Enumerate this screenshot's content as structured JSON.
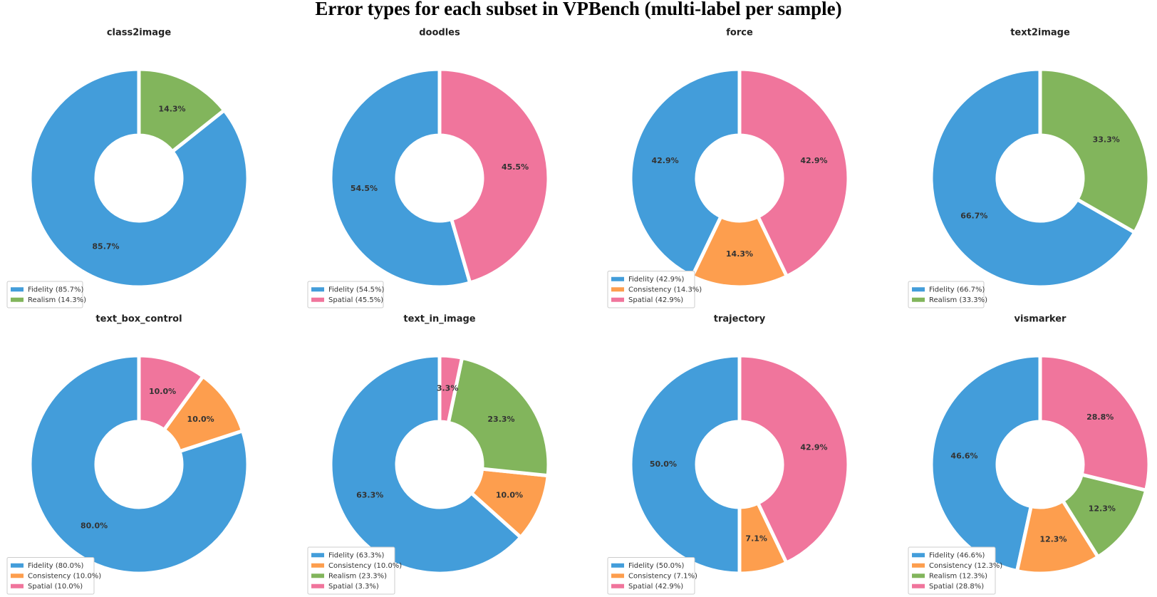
{
  "title": "Error types for each subset in VPBench (multi-label per sample)",
  "chart_data": [
    {
      "type": "pie",
      "title": "class2image",
      "categories": [
        "Fidelity (85.7%)",
        "Realism (14.3%)"
      ],
      "values": [
        85.7,
        14.3
      ],
      "value_labels": [
        "85.7%",
        "14.3%"
      ],
      "colors": [
        "#439dda",
        "#82b55c"
      ],
      "legend": "lower left"
    },
    {
      "type": "pie",
      "title": "doodles",
      "categories": [
        "Fidelity (54.5%)",
        "Spatial (45.5%)"
      ],
      "values": [
        54.5,
        45.5
      ],
      "value_labels": [
        "54.5%",
        "45.5%"
      ],
      "colors": [
        "#439dda",
        "#f0759c"
      ],
      "legend": "lower left"
    },
    {
      "type": "pie",
      "title": "force",
      "categories": [
        "Fidelity (42.9%)",
        "Consistency (14.3%)",
        "Spatial (42.9%)"
      ],
      "values": [
        42.9,
        14.3,
        42.9
      ],
      "value_labels": [
        "42.9%",
        "14.3%",
        "42.9%"
      ],
      "colors": [
        "#439dda",
        "#fd9e4e",
        "#f0759c"
      ],
      "legend": "lower left"
    },
    {
      "type": "pie",
      "title": "text2image",
      "categories": [
        "Fidelity (66.7%)",
        "Realism (33.3%)"
      ],
      "values": [
        66.7,
        33.3
      ],
      "value_labels": [
        "66.7%",
        "33.3%"
      ],
      "colors": [
        "#439dda",
        "#82b55c"
      ],
      "legend": "lower left"
    },
    {
      "type": "pie",
      "title": "text_box_control",
      "categories": [
        "Fidelity (80.0%)",
        "Consistency (10.0%)",
        "Spatial (10.0%)"
      ],
      "values": [
        80.0,
        10.0,
        10.0
      ],
      "value_labels": [
        "80.0%",
        "10.0%",
        "10.0%"
      ],
      "colors": [
        "#439dda",
        "#fd9e4e",
        "#f0759c"
      ],
      "legend": "lower left"
    },
    {
      "type": "pie",
      "title": "text_in_image",
      "categories": [
        "Fidelity (63.3%)",
        "Consistency (10.0%)",
        "Realism (23.3%)",
        "Spatial (3.3%)"
      ],
      "values": [
        63.3,
        10.0,
        23.3,
        3.3
      ],
      "value_labels": [
        "63.3%",
        "10.0%",
        "23.3%",
        "3.3%"
      ],
      "colors": [
        "#439dda",
        "#fd9e4e",
        "#82b55c",
        "#f0759c"
      ],
      "legend": "lower left"
    },
    {
      "type": "pie",
      "title": "trajectory",
      "categories": [
        "Fidelity (50.0%)",
        "Consistency (7.1%)",
        "Spatial (42.9%)"
      ],
      "values": [
        50.0,
        7.1,
        42.9
      ],
      "value_labels": [
        "50.0%",
        "7.1%",
        "42.9%"
      ],
      "colors": [
        "#439dda",
        "#fd9e4e",
        "#f0759c"
      ],
      "legend": "lower left"
    },
    {
      "type": "pie",
      "title": "vismarker",
      "categories": [
        "Fidelity (46.6%)",
        "Consistency (12.3%)",
        "Realism (12.3%)",
        "Spatial (28.8%)"
      ],
      "values": [
        46.6,
        12.3,
        12.3,
        28.8
      ],
      "value_labels": [
        "46.6%",
        "12.3%",
        "12.3%",
        "28.8%"
      ],
      "colors": [
        "#439dda",
        "#fd9e4e",
        "#82b55c",
        "#f0759c"
      ],
      "legend": "lower left"
    }
  ]
}
